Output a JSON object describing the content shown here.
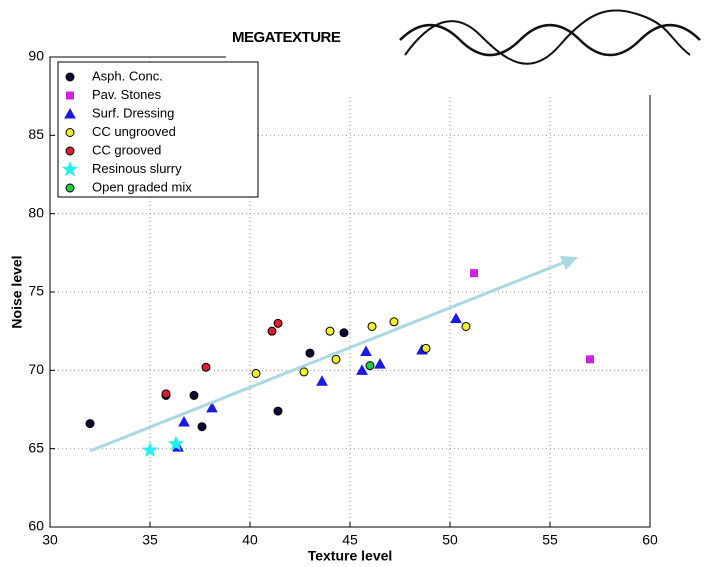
{
  "chart_data": {
    "type": "scatter",
    "banner": "MEGATEXTURE",
    "xlabel": "Texture level",
    "ylabel": "Noise level",
    "xlim": [
      30,
      60
    ],
    "ylim": [
      60,
      90
    ],
    "xticks": [
      30,
      35,
      40,
      45,
      50,
      55,
      60
    ],
    "yticks": [
      60,
      65,
      70,
      75,
      80,
      85,
      90
    ],
    "grid": true,
    "legend": "upper left",
    "series": [
      {
        "name": "Asph. Conc.",
        "color": "#0a0a33",
        "marker": "circle",
        "x": [
          32,
          35.8,
          37.2,
          37.6,
          41.4,
          43,
          44.7
        ],
        "values": [
          66.6,
          68.4,
          68.4,
          66.4,
          67.4,
          71.1,
          72.4
        ]
      },
      {
        "name": "Pav. Stones",
        "color": "#d020e0",
        "marker": "square",
        "x": [
          51.2,
          57
        ],
        "values": [
          76.2,
          70.7
        ]
      },
      {
        "name": "Surf. Dressing",
        "color": "#1a1ae0",
        "marker": "triangle",
        "x": [
          36.4,
          36.7,
          38.1,
          43.6,
          45.6,
          45.8,
          46.5,
          48.6,
          50.3
        ],
        "values": [
          65.1,
          66.7,
          67.6,
          69.3,
          70,
          71.2,
          70.4,
          71.3,
          73.3
        ]
      },
      {
        "name": "CC ungrooved",
        "color": "#f0f030",
        "marker": "circle",
        "x": [
          40.3,
          42.7,
          44,
          44.3,
          46.1,
          47.2,
          48.8,
          50.8
        ],
        "values": [
          69.8,
          69.9,
          72.5,
          70.7,
          72.8,
          73.1,
          71.4,
          72.8
        ]
      },
      {
        "name": "CC grooved",
        "color": "#e01a30",
        "marker": "circle",
        "x": [
          35.8,
          37.8,
          41.1,
          41.4
        ],
        "values": [
          68.5,
          70.2,
          72.5,
          73
        ]
      },
      {
        "name": "Resinous slurry",
        "color": "#20f0f0",
        "marker": "star",
        "x": [
          35,
          36.3
        ],
        "values": [
          64.9,
          65.3
        ]
      },
      {
        "name": "Open graded mix",
        "color": "#20d040",
        "marker": "circle",
        "x": [
          46
        ],
        "values": [
          70.3
        ]
      }
    ]
  }
}
